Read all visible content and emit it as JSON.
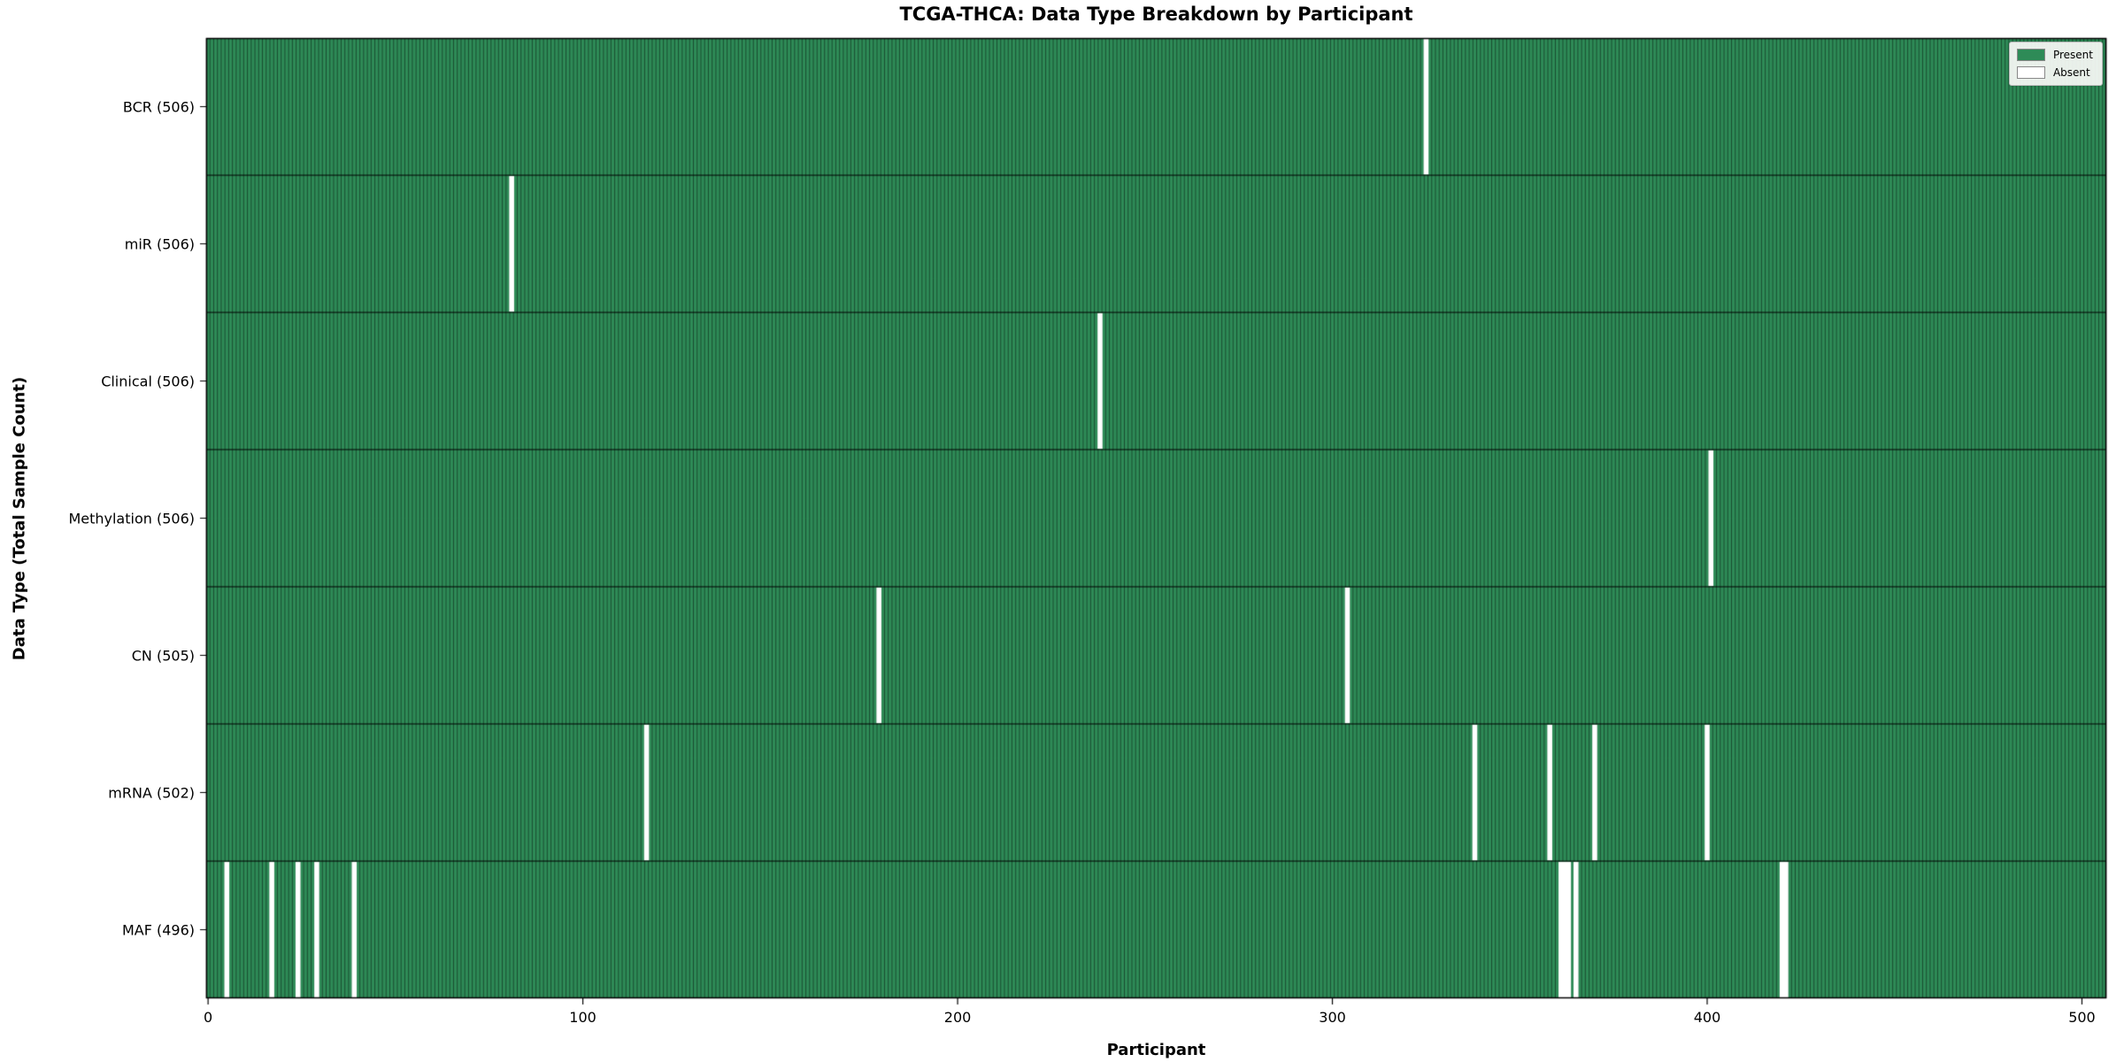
{
  "title": "TCGA-THCA: Data Type Breakdown by Participant",
  "chart_data": {
    "type": "heatmap",
    "title": "TCGA-THCA: Data Type Breakdown by Participant",
    "xlabel": "Participant",
    "ylabel": "Data Type (Total Sample Count)",
    "x_ticks": [
      "0",
      "100",
      "200",
      "300",
      "400",
      "500"
    ],
    "x_tick_values": [
      0,
      100,
      200,
      300,
      400,
      500
    ],
    "n_participants": 507,
    "xlim": [
      -0.5,
      506.5
    ],
    "grid": false,
    "legend": {
      "position": "upper right",
      "entries": [
        {
          "label": "Present",
          "color": "#2e8b57"
        },
        {
          "label": "Absent",
          "color": "#ffffff"
        }
      ]
    },
    "colors": {
      "present": "#2e8b57",
      "absent": "#ffffff",
      "bar_edge": "rgba(0,0,0,0.5)",
      "row_separator": "#000000",
      "plot_border": "#000000"
    },
    "rows": [
      {
        "data_type": "BCR",
        "label": "BCR (506)",
        "total": 506,
        "absent_participants": [
          325
        ]
      },
      {
        "data_type": "miR",
        "label": "miR (506)",
        "total": 506,
        "absent_participants": [
          81
        ]
      },
      {
        "data_type": "Clinical",
        "label": "Clinical (506)",
        "total": 506,
        "absent_participants": [
          238
        ]
      },
      {
        "data_type": "Methylation",
        "label": "Methylation (506)",
        "total": 506,
        "absent_participants": [
          401
        ]
      },
      {
        "data_type": "CN",
        "label": "CN (505)",
        "total": 505,
        "absent_participants": [
          179,
          304
        ]
      },
      {
        "data_type": "mRNA",
        "label": "mRNA (502)",
        "total": 502,
        "absent_participants": [
          117,
          338,
          358,
          370,
          400
        ]
      },
      {
        "data_type": "MAF",
        "label": "MAF (496)",
        "total": 496,
        "absent_participants": [
          5,
          17,
          24,
          29,
          39,
          361,
          362,
          363,
          365,
          420,
          421
        ]
      }
    ]
  }
}
